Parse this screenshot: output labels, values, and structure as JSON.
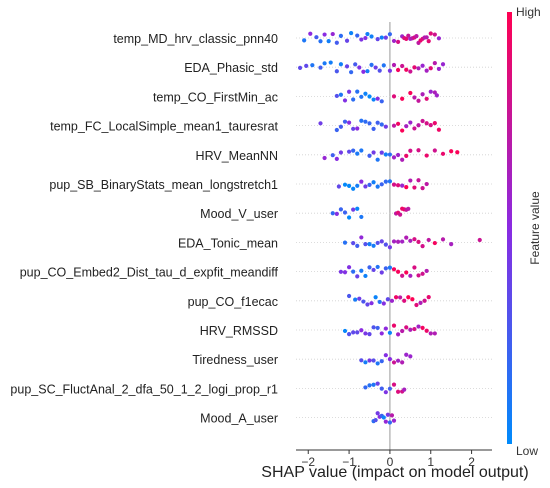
{
  "chart_data": {
    "type": "scatter",
    "subtype": "shap-beeswarm",
    "xlabel": "SHAP value (impact on model output)",
    "xlim": [
      -2.3,
      2.5
    ],
    "x_ticks": [
      -2,
      -1,
      0,
      1,
      2
    ],
    "x_tick_labels": [
      "−2",
      "−1",
      "0",
      "1",
      "2"
    ],
    "zero_line": 0,
    "features": [
      {
        "name": "temp_MD_hrv_classic_pnn40",
        "x_range": [
          -2.1,
          1.25
        ],
        "values": [
          -2.1,
          -1.95,
          -1.8,
          -1.7,
          -1.6,
          -1.5,
          -1.4,
          -1.3,
          -1.2,
          -1.05,
          -0.95,
          -0.8,
          -0.7,
          -0.6,
          -0.55,
          -0.45,
          -0.3,
          -0.2,
          -0.1,
          0.0,
          0.1,
          0.2,
          0.3,
          0.35,
          0.4,
          0.45,
          0.5,
          0.55,
          0.6,
          0.65,
          0.7,
          0.75,
          0.8,
          0.85,
          0.9,
          0.95,
          1.0,
          1.1,
          1.2
        ]
      },
      {
        "name": "EDA_Phasic_std",
        "x_range": [
          -2.2,
          1.35
        ],
        "values": [
          -2.2,
          -2.05,
          -1.9,
          -1.7,
          -1.6,
          -1.45,
          -1.3,
          -1.2,
          -1.05,
          -0.95,
          -0.85,
          -0.75,
          -0.65,
          -0.55,
          -0.45,
          -0.35,
          -0.25,
          -0.15,
          0.0,
          0.1,
          0.2,
          0.3,
          0.4,
          0.5,
          0.6,
          0.7,
          0.8,
          0.9,
          1.0,
          1.1,
          1.2,
          1.3
        ]
      },
      {
        "name": "temp_CO_FirstMin_ac",
        "x_range": [
          -1.3,
          1.2
        ],
        "values": [
          -1.3,
          -1.2,
          -1.1,
          -1.0,
          -0.9,
          -0.8,
          -0.7,
          -0.6,
          -0.5,
          -0.4,
          -0.3,
          -0.2,
          0.1,
          0.3,
          0.5,
          0.6,
          0.7,
          0.8,
          0.9,
          1.0,
          1.1,
          1.15
        ]
      },
      {
        "name": "temp_FC_LocalSimple_mean1_tauresrat",
        "x_range": [
          -1.7,
          1.25
        ],
        "values": [
          -1.7,
          -1.3,
          -1.2,
          -1.1,
          -1.0,
          -0.9,
          -0.8,
          -0.7,
          -0.6,
          -0.5,
          -0.4,
          -0.3,
          -0.2,
          -0.1,
          0.1,
          0.2,
          0.3,
          0.4,
          0.5,
          0.6,
          0.7,
          0.8,
          0.9,
          1.0,
          1.1,
          1.2
        ]
      },
      {
        "name": "HRV_MeanNN",
        "x_range": [
          -1.6,
          1.65
        ],
        "values": [
          -1.6,
          -1.4,
          -1.3,
          -1.2,
          -1.0,
          -0.9,
          -0.8,
          -0.7,
          -0.5,
          -0.4,
          -0.3,
          -0.2,
          -0.1,
          0.0,
          0.1,
          0.2,
          0.3,
          0.4,
          0.5,
          0.7,
          0.9,
          1.1,
          1.3,
          1.5,
          1.65
        ]
      },
      {
        "name": "pup_SB_BinaryStats_mean_longstretch1",
        "x_range": [
          -1.25,
          0.9
        ],
        "values": [
          -1.25,
          -1.1,
          -1.0,
          -0.9,
          -0.8,
          -0.7,
          -0.6,
          -0.5,
          -0.4,
          -0.3,
          -0.2,
          -0.1,
          0.0,
          0.1,
          0.2,
          0.3,
          0.4,
          0.5,
          0.6,
          0.7,
          0.8,
          0.9
        ]
      },
      {
        "name": "Mood_V_user",
        "x_range": [
          -1.4,
          0.45
        ],
        "values": [
          -1.4,
          -1.3,
          -1.2,
          -1.1,
          -1.0,
          -0.9,
          -0.8,
          -0.7,
          0.15,
          0.2,
          0.25,
          0.3,
          0.35,
          0.4,
          0.45
        ]
      },
      {
        "name": "EDA_Tonic_mean",
        "x_range": [
          -1.1,
          2.2
        ],
        "values": [
          -1.1,
          -0.9,
          -0.8,
          -0.7,
          -0.6,
          -0.5,
          -0.4,
          -0.3,
          -0.2,
          -0.1,
          0.0,
          0.1,
          0.2,
          0.3,
          0.4,
          0.5,
          0.6,
          0.7,
          0.8,
          0.95,
          1.1,
          1.3,
          1.5,
          2.2
        ]
      },
      {
        "name": "pup_CO_Embed2_Dist_tau_d_expfit_meandiff",
        "x_range": [
          -1.2,
          0.9
        ],
        "values": [
          -1.2,
          -1.1,
          -1.0,
          -0.9,
          -0.8,
          -0.7,
          -0.6,
          -0.5,
          -0.4,
          -0.3,
          -0.2,
          -0.1,
          0.0,
          0.1,
          0.2,
          0.3,
          0.4,
          0.5,
          0.6,
          0.7,
          0.8,
          0.9
        ]
      },
      {
        "name": "pup_CO_f1ecac",
        "x_range": [
          -1.0,
          0.95
        ],
        "values": [
          -1.0,
          -0.85,
          -0.75,
          -0.65,
          -0.55,
          -0.45,
          -0.35,
          -0.25,
          -0.15,
          -0.05,
          0.05,
          0.15,
          0.25,
          0.35,
          0.45,
          0.55,
          0.65,
          0.75,
          0.85,
          0.95
        ]
      },
      {
        "name": "HRV_RMSSD",
        "x_range": [
          -1.1,
          1.1
        ],
        "values": [
          -1.1,
          -1.0,
          -0.9,
          -0.8,
          -0.7,
          -0.6,
          -0.5,
          -0.4,
          -0.3,
          -0.2,
          -0.1,
          0.0,
          0.1,
          0.2,
          0.3,
          0.4,
          0.5,
          0.6,
          0.7,
          0.8,
          0.9,
          1.0,
          1.1
        ]
      },
      {
        "name": "Tiredness_user",
        "x_range": [
          -0.7,
          0.5
        ],
        "values": [
          -0.7,
          -0.6,
          -0.5,
          -0.4,
          -0.3,
          -0.2,
          -0.1,
          0.0,
          0.1,
          0.2,
          0.3,
          0.4,
          0.5
        ]
      },
      {
        "name": "pup_SC_FluctAnal_2_dfa_50_1_2_logi_prop_r1",
        "x_range": [
          -0.6,
          0.35
        ],
        "values": [
          -0.6,
          -0.5,
          -0.4,
          -0.3,
          -0.2,
          -0.1,
          0.0,
          0.1,
          0.2,
          0.3,
          0.35
        ]
      },
      {
        "name": "Mood_A_user",
        "x_range": [
          -0.4,
          0.1
        ],
        "values": [
          -0.4,
          -0.35,
          -0.3,
          -0.25,
          -0.2,
          -0.15,
          -0.1,
          -0.05,
          0.0,
          0.05,
          0.1
        ]
      }
    ],
    "colorbar": {
      "title": "Feature value",
      "high_label": "High",
      "low_label": "Low",
      "high_color": "#ff0052",
      "mid_color": "#8a2be2",
      "low_color": "#008bfb"
    }
  }
}
